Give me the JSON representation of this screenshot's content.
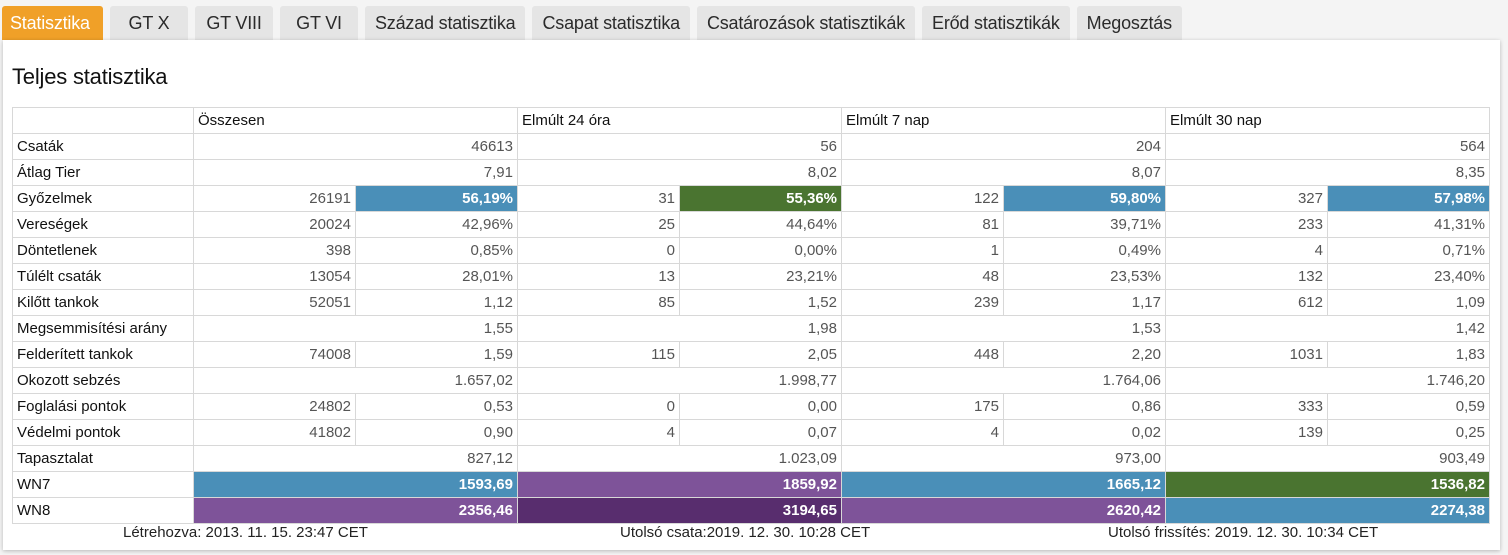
{
  "tabs": [
    {
      "label": "Statisztika",
      "active": true
    },
    {
      "label": "GT X",
      "active": false
    },
    {
      "label": "GT VIII",
      "active": false
    },
    {
      "label": "GT VI",
      "active": false
    },
    {
      "label": "Század statisztika",
      "active": false
    },
    {
      "label": "Csapat statisztika",
      "active": false
    },
    {
      "label": "Csatározások statisztikák",
      "active": false
    },
    {
      "label": "Erőd statisztikák",
      "active": false
    },
    {
      "label": "Megosztás",
      "active": false
    }
  ],
  "colors": {
    "accent_orange": "#f0a028",
    "blue": "#4a8fb8",
    "green": "#4a7430",
    "purple": "#7e5399",
    "dark_purple": "#582d6e"
  },
  "panel": {
    "title": "Teljes statisztika",
    "columns": [
      "Összesen",
      "Elmúlt 24 óra",
      "Elmúlt 7 nap",
      "Elmúlt 30 nap"
    ],
    "rows": [
      {
        "label": "Csaták",
        "merged": true,
        "cells": [
          {
            "v": "46613"
          },
          {
            "v": "56"
          },
          {
            "v": "204"
          },
          {
            "v": "564"
          }
        ]
      },
      {
        "label": "Átlag Tier",
        "merged": true,
        "cells": [
          {
            "v": "7,91"
          },
          {
            "v": "8,02"
          },
          {
            "v": "8,07"
          },
          {
            "v": "8,35"
          }
        ]
      },
      {
        "label": "Győzelmek",
        "merged": false,
        "cells": [
          {
            "a": "26191",
            "b": "56,19%",
            "bcolor": "#4a8fb8"
          },
          {
            "a": "31",
            "b": "55,36%",
            "bcolor": "#4a7430"
          },
          {
            "a": "122",
            "b": "59,80%",
            "bcolor": "#4a8fb8"
          },
          {
            "a": "327",
            "b": "57,98%",
            "bcolor": "#4a8fb8"
          }
        ]
      },
      {
        "label": "Vereségek",
        "merged": false,
        "cells": [
          {
            "a": "20024",
            "b": "42,96%"
          },
          {
            "a": "25",
            "b": "44,64%"
          },
          {
            "a": "81",
            "b": "39,71%"
          },
          {
            "a": "233",
            "b": "41,31%"
          }
        ]
      },
      {
        "label": "Döntetlenek",
        "merged": false,
        "cells": [
          {
            "a": "398",
            "b": "0,85%"
          },
          {
            "a": "0",
            "b": "0,00%"
          },
          {
            "a": "1",
            "b": "0,49%"
          },
          {
            "a": "4",
            "b": "0,71%"
          }
        ]
      },
      {
        "label": "Túlélt csaták",
        "merged": false,
        "cells": [
          {
            "a": "13054",
            "b": "28,01%"
          },
          {
            "a": "13",
            "b": "23,21%"
          },
          {
            "a": "48",
            "b": "23,53%"
          },
          {
            "a": "132",
            "b": "23,40%"
          }
        ]
      },
      {
        "label": "Kilőtt tankok",
        "merged": false,
        "cells": [
          {
            "a": "52051",
            "b": "1,12"
          },
          {
            "a": "85",
            "b": "1,52"
          },
          {
            "a": "239",
            "b": "1,17"
          },
          {
            "a": "612",
            "b": "1,09"
          }
        ]
      },
      {
        "label": "Megsemmisítési arány",
        "merged": true,
        "cells": [
          {
            "v": "1,55"
          },
          {
            "v": "1,98"
          },
          {
            "v": "1,53"
          },
          {
            "v": "1,42"
          }
        ]
      },
      {
        "label": "Felderített tankok",
        "merged": false,
        "cells": [
          {
            "a": "74008",
            "b": "1,59"
          },
          {
            "a": "115",
            "b": "2,05"
          },
          {
            "a": "448",
            "b": "2,20"
          },
          {
            "a": "1031",
            "b": "1,83"
          }
        ]
      },
      {
        "label": "Okozott sebzés",
        "merged": true,
        "cells": [
          {
            "v": "1.657,02"
          },
          {
            "v": "1.998,77"
          },
          {
            "v": "1.764,06"
          },
          {
            "v": "1.746,20"
          }
        ]
      },
      {
        "label": "Foglalási pontok",
        "merged": false,
        "cells": [
          {
            "a": "24802",
            "b": "0,53"
          },
          {
            "a": "0",
            "b": "0,00"
          },
          {
            "a": "175",
            "b": "0,86"
          },
          {
            "a": "333",
            "b": "0,59"
          }
        ]
      },
      {
        "label": "Védelmi pontok",
        "merged": false,
        "cells": [
          {
            "a": "41802",
            "b": "0,90"
          },
          {
            "a": "4",
            "b": "0,07"
          },
          {
            "a": "4",
            "b": "0,02"
          },
          {
            "a": "139",
            "b": "0,25"
          }
        ]
      },
      {
        "label": "Tapasztalat",
        "merged": true,
        "cells": [
          {
            "v": "827,12"
          },
          {
            "v": "1.023,09"
          },
          {
            "v": "973,00"
          },
          {
            "v": "903,49"
          }
        ]
      },
      {
        "label": "WN7",
        "merged": true,
        "cells": [
          {
            "v": "1593,69",
            "color": "#4a8fb8"
          },
          {
            "v": "1859,92",
            "color": "#7e5399"
          },
          {
            "v": "1665,12",
            "color": "#4a8fb8"
          },
          {
            "v": "1536,82",
            "color": "#4a7430"
          }
        ]
      },
      {
        "label": "WN8",
        "merged": true,
        "cells": [
          {
            "v": "2356,46",
            "color": "#7e5399"
          },
          {
            "v": "3194,65",
            "color": "#582d6e"
          },
          {
            "v": "2620,42",
            "color": "#7e5399"
          },
          {
            "v": "2274,38",
            "color": "#4a8fb8"
          }
        ]
      }
    ]
  },
  "footer": {
    "created": "Létrehozva: 2013. 11. 15. 23:47 CET",
    "last_battle": "Utolsó csata:2019. 12. 30. 10:28 CET",
    "last_update": "Utolsó frissítés: 2019. 12. 30. 10:34 CET"
  }
}
